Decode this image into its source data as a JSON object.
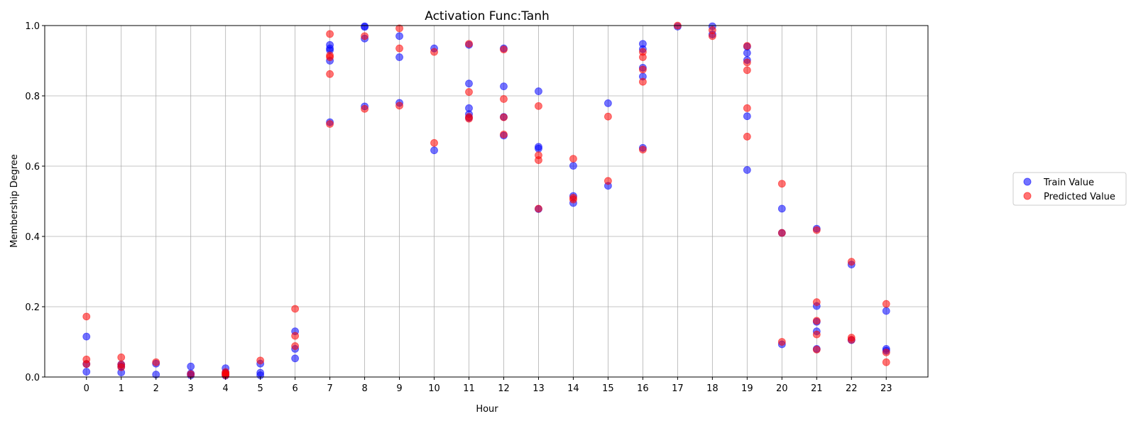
{
  "chart_data": {
    "type": "scatter",
    "title": "Activation Func:Tanh",
    "xlabel": "Hour",
    "ylabel": "Membership Degree",
    "xlim": [
      -1.2,
      24.2
    ],
    "ylim": [
      0.0,
      1.0
    ],
    "x_ticks": [
      "0",
      "1",
      "2",
      "3",
      "4",
      "5",
      "6",
      "7",
      "8",
      "9",
      "10",
      "11",
      "12",
      "13",
      "14",
      "15",
      "16",
      "17",
      "18",
      "19",
      "20",
      "21",
      "22",
      "23"
    ],
    "y_ticks": [
      "0.0",
      "0.2",
      "0.4",
      "0.6",
      "0.8",
      "1.0"
    ],
    "grid": true,
    "legend_position": "right",
    "series": [
      {
        "name": "Train Value",
        "color": "#0000ff",
        "points": [
          [
            0,
            0.115
          ],
          [
            0,
            0.037
          ],
          [
            0,
            0.015
          ],
          [
            1,
            0.036
          ],
          [
            1,
            0.03
          ],
          [
            1,
            0.013
          ],
          [
            2,
            0.038
          ],
          [
            2,
            0.007
          ],
          [
            3,
            0.03
          ],
          [
            3,
            0.01
          ],
          [
            3,
            0.005
          ],
          [
            4,
            0.025
          ],
          [
            4,
            0.012
          ],
          [
            4,
            0.008
          ],
          [
            4,
            0.004
          ],
          [
            5,
            0.038
          ],
          [
            5,
            0.012
          ],
          [
            5,
            0.005
          ],
          [
            6,
            0.13
          ],
          [
            6,
            0.08
          ],
          [
            6,
            0.053
          ],
          [
            7,
            0.945
          ],
          [
            7,
            0.935
          ],
          [
            7,
            0.93
          ],
          [
            7,
            0.9
          ],
          [
            7,
            0.725
          ],
          [
            8,
            0.998
          ],
          [
            8,
            0.996
          ],
          [
            8,
            0.963
          ],
          [
            8,
            0.77
          ],
          [
            9,
            0.97
          ],
          [
            9,
            0.91
          ],
          [
            9,
            0.78
          ],
          [
            10,
            0.935
          ],
          [
            10,
            0.645
          ],
          [
            11,
            0.945
          ],
          [
            11,
            0.835
          ],
          [
            11,
            0.765
          ],
          [
            11,
            0.748
          ],
          [
            11,
            0.738
          ],
          [
            12,
            0.935
          ],
          [
            12,
            0.827
          ],
          [
            12,
            0.74
          ],
          [
            12,
            0.687
          ],
          [
            13,
            0.813
          ],
          [
            13,
            0.655
          ],
          [
            13,
            0.65
          ],
          [
            13,
            0.478
          ],
          [
            14,
            0.601
          ],
          [
            14,
            0.515
          ],
          [
            14,
            0.495
          ],
          [
            15,
            0.779
          ],
          [
            15,
            0.544
          ],
          [
            16,
            0.948
          ],
          [
            16,
            0.933
          ],
          [
            16,
            0.88
          ],
          [
            16,
            0.855
          ],
          [
            16,
            0.652
          ],
          [
            17,
            0.997
          ],
          [
            18,
            0.998
          ],
          [
            18,
            0.975
          ],
          [
            19,
            0.94
          ],
          [
            19,
            0.922
          ],
          [
            19,
            0.902
          ],
          [
            19,
            0.742
          ],
          [
            19,
            0.589
          ],
          [
            20,
            0.479
          ],
          [
            20,
            0.41
          ],
          [
            20,
            0.093
          ],
          [
            21,
            0.422
          ],
          [
            21,
            0.202
          ],
          [
            21,
            0.157
          ],
          [
            21,
            0.13
          ],
          [
            21,
            0.08
          ],
          [
            22,
            0.32
          ],
          [
            22,
            0.105
          ],
          [
            23,
            0.188
          ],
          [
            23,
            0.08
          ],
          [
            23,
            0.075
          ]
        ]
      },
      {
        "name": "Predicted Value",
        "color": "#ff0000",
        "points": [
          [
            0,
            0.172
          ],
          [
            0,
            0.05
          ],
          [
            0,
            0.037
          ],
          [
            1,
            0.056
          ],
          [
            1,
            0.035
          ],
          [
            1,
            0.028
          ],
          [
            2,
            0.042
          ],
          [
            3,
            0.008
          ],
          [
            4,
            0.014
          ],
          [
            4,
            0.01
          ],
          [
            4,
            0.008
          ],
          [
            4,
            0.005
          ],
          [
            5,
            0.047
          ],
          [
            6,
            0.194
          ],
          [
            6,
            0.117
          ],
          [
            6,
            0.088
          ],
          [
            7,
            0.976
          ],
          [
            7,
            0.915
          ],
          [
            7,
            0.91
          ],
          [
            7,
            0.862
          ],
          [
            7,
            0.72
          ],
          [
            8,
            0.97
          ],
          [
            8,
            0.763
          ],
          [
            9,
            0.992
          ],
          [
            9,
            0.935
          ],
          [
            9,
            0.772
          ],
          [
            10,
            0.925
          ],
          [
            10,
            0.666
          ],
          [
            11,
            0.948
          ],
          [
            11,
            0.811
          ],
          [
            11,
            0.74
          ],
          [
            11,
            0.735
          ],
          [
            12,
            0.932
          ],
          [
            12,
            0.791
          ],
          [
            12,
            0.739
          ],
          [
            12,
            0.69
          ],
          [
            13,
            0.771
          ],
          [
            13,
            0.631
          ],
          [
            13,
            0.617
          ],
          [
            13,
            0.479
          ],
          [
            14,
            0.621
          ],
          [
            14,
            0.51
          ],
          [
            14,
            0.505
          ],
          [
            15,
            0.741
          ],
          [
            15,
            0.558
          ],
          [
            16,
            0.925
          ],
          [
            16,
            0.91
          ],
          [
            16,
            0.875
          ],
          [
            16,
            0.84
          ],
          [
            16,
            0.647
          ],
          [
            17,
            1.0
          ],
          [
            18,
            0.987
          ],
          [
            18,
            0.97
          ],
          [
            19,
            0.942
          ],
          [
            19,
            0.895
          ],
          [
            19,
            0.873
          ],
          [
            19,
            0.765
          ],
          [
            19,
            0.684
          ],
          [
            20,
            0.55
          ],
          [
            20,
            0.41
          ],
          [
            20,
            0.1
          ],
          [
            21,
            0.418
          ],
          [
            21,
            0.213
          ],
          [
            21,
            0.16
          ],
          [
            21,
            0.121
          ],
          [
            21,
            0.078
          ],
          [
            22,
            0.328
          ],
          [
            22,
            0.112
          ],
          [
            22,
            0.106
          ],
          [
            23,
            0.208
          ],
          [
            23,
            0.07
          ],
          [
            23,
            0.042
          ]
        ]
      }
    ]
  }
}
